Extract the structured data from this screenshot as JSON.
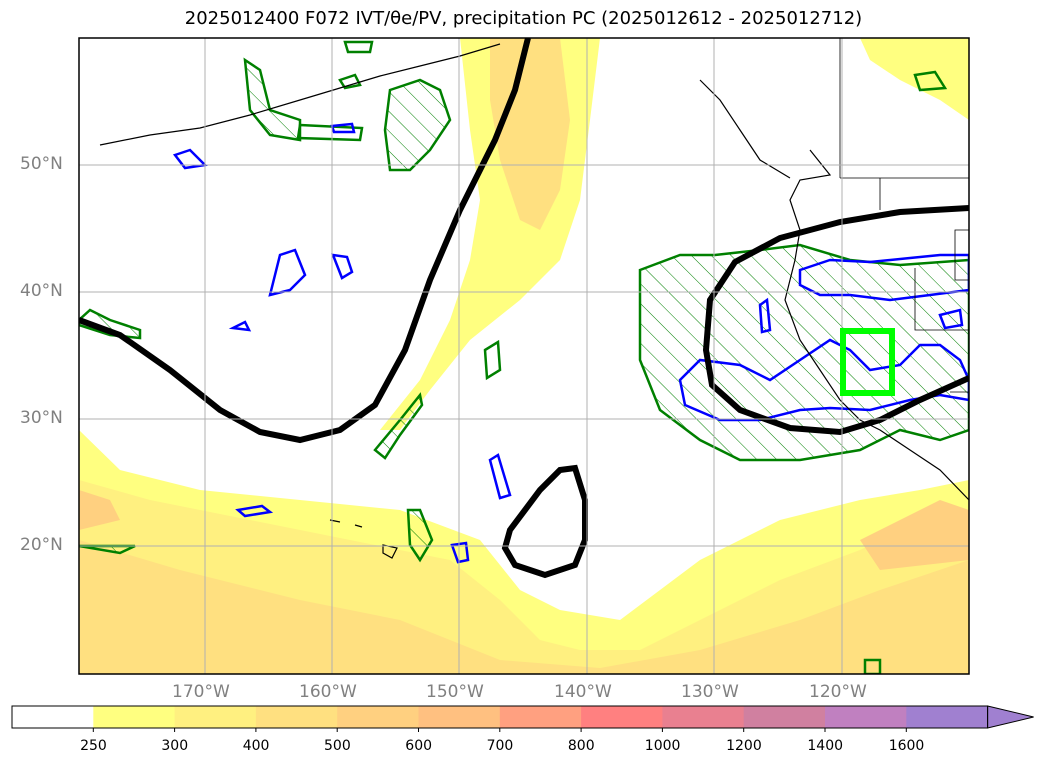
{
  "title": "2025012400 F072 IVT/θe/PV, precipitation PC (2025012612 - 2025012712)",
  "axes": {
    "lat_labels": [
      "50°N",
      "40°N",
      "30°N",
      "20°N"
    ],
    "lon_labels": [
      "170°W",
      "160°W",
      "150°W",
      "140°W",
      "130°W",
      "120°W"
    ]
  },
  "colorbar": {
    "ticks": [
      "250",
      "300",
      "400",
      "500",
      "600",
      "700",
      "800",
      "1000",
      "1200",
      "1400",
      "1600"
    ],
    "colors": [
      "#ffffff",
      "#ffff80",
      "#fff080",
      "#ffe080",
      "#ffd080",
      "#ffc080",
      "#ffa080",
      "#ff8080",
      "#e98090",
      "#d080a0",
      "#c080c0",
      "#a080d0"
    ],
    "extend": "max"
  },
  "legend_colors": {
    "ivt_low": "#ffff80",
    "ivt_mid": "#ffe080",
    "theta_e_contour": "#0000ff",
    "pv_contour": "#008000",
    "pv_hatch": "#008000",
    "black_contour": "#000000",
    "target_box": "#00ff00"
  }
}
